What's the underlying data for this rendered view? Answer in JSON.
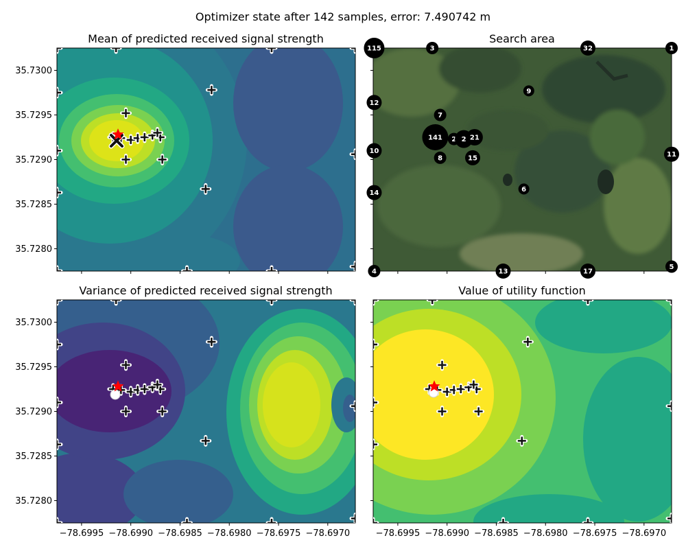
{
  "figure": {
    "suptitle": "Optimizer state after 142 samples, error: 7.490742 m"
  },
  "chart_data": [
    {
      "type": "contour",
      "title": "Mean of predicted received signal strength",
      "colormap": [
        "#440154",
        "#482475",
        "#414487",
        "#355f8d",
        "#2a788e",
        "#21918c",
        "#22a884",
        "#44bf70",
        "#7ad151",
        "#bddf26",
        "#fde725"
      ],
      "xlim": [
        -78.69975,
        -78.69672
      ],
      "ylim": [
        35.72775,
        35.73025
      ],
      "xticks": [
        -78.6995,
        -78.699,
        -78.6985,
        -78.698,
        -78.6975,
        -78.697
      ],
      "xtick_labels": [
        "−78.6995",
        "−78.6990",
        "−78.6985",
        "−78.6980",
        "−78.6975",
        "−78.6970"
      ],
      "yticks": [
        35.728,
        35.7285,
        35.729,
        35.7295,
        35.73
      ],
      "ytick_labels": [
        "35.7280",
        "35.7285",
        "35.7290",
        "35.7295",
        "35.7300"
      ],
      "show_xtick_labels": false,
      "show_ytick_labels": true,
      "estimate_marker": "x",
      "true_location": [
        -78.69913,
        35.72928
      ]
    },
    {
      "type": "map",
      "title": "Search area",
      "xlim": [
        -78.69975,
        -78.69672
      ],
      "ylim": [
        35.72775,
        35.73025
      ],
      "xticks": [
        -78.6995,
        -78.699,
        -78.6985,
        -78.698,
        -78.6975,
        -78.697
      ],
      "yticks": [
        35.728,
        35.7285,
        35.729,
        35.7295,
        35.73
      ],
      "show_xtick_labels": false,
      "show_ytick_labels": false,
      "bubbles": [
        {
          "label": "115",
          "x": -78.69974,
          "y": 35.73025,
          "size": 15
        },
        {
          "label": "3",
          "x": -78.69915,
          "y": 35.73025,
          "size": 9
        },
        {
          "label": "32",
          "x": -78.69757,
          "y": 35.73025,
          "size": 11
        },
        {
          "label": "1",
          "x": -78.69672,
          "y": 35.73025,
          "size": 9
        },
        {
          "label": "9",
          "x": -78.69817,
          "y": 35.72977,
          "size": 8
        },
        {
          "label": "12",
          "x": -78.69974,
          "y": 35.72964,
          "size": 11
        },
        {
          "label": "7",
          "x": -78.69907,
          "y": 35.7295,
          "size": 9
        },
        {
          "label": "141",
          "x": -78.69912,
          "y": 35.72925,
          "size": 19
        },
        {
          "label": "2",
          "x": -78.69893,
          "y": 35.72923,
          "size": 9
        },
        {
          "label": "2",
          "x": -78.69883,
          "y": 35.72923,
          "size": 13
        },
        {
          "label": "21",
          "x": -78.69872,
          "y": 35.72925,
          "size": 12
        },
        {
          "label": "10",
          "x": -78.69974,
          "y": 35.7291,
          "size": 11
        },
        {
          "label": "8",
          "x": -78.69907,
          "y": 35.72902,
          "size": 9
        },
        {
          "label": "15",
          "x": -78.69874,
          "y": 35.72902,
          "size": 11
        },
        {
          "label": "11",
          "x": -78.69672,
          "y": 35.72906,
          "size": 11
        },
        {
          "label": "6",
          "x": -78.69822,
          "y": 35.72867,
          "size": 8
        },
        {
          "label": "14",
          "x": -78.69974,
          "y": 35.72863,
          "size": 11
        },
        {
          "label": "4",
          "x": -78.69974,
          "y": 35.72775,
          "size": 9
        },
        {
          "label": "13",
          "x": -78.69843,
          "y": 35.72775,
          "size": 11
        },
        {
          "label": "17",
          "x": -78.69757,
          "y": 35.72775,
          "size": 11
        },
        {
          "label": "5",
          "x": -78.69672,
          "y": 35.7278,
          "size": 9
        }
      ]
    },
    {
      "type": "contour",
      "title": "Variance of predicted received signal strength",
      "colormap": [
        "#440154",
        "#482475",
        "#414487",
        "#355f8d",
        "#2a788e",
        "#21918c",
        "#22a884",
        "#44bf70",
        "#7ad151",
        "#bddf26",
        "#fde725"
      ],
      "xlim": [
        -78.69975,
        -78.69672
      ],
      "ylim": [
        35.72775,
        35.73025
      ],
      "xticks": [
        -78.6995,
        -78.699,
        -78.6985,
        -78.698,
        -78.6975,
        -78.697
      ],
      "xtick_labels": [
        "−78.6995",
        "−78.6990",
        "−78.6985",
        "−78.6980",
        "−78.6975",
        "−78.6970"
      ],
      "yticks": [
        35.728,
        35.7285,
        35.729,
        35.7295,
        35.73
      ],
      "ytick_labels": [
        "35.7280",
        "35.7285",
        "35.7290",
        "35.7295",
        "35.7300"
      ],
      "show_xtick_labels": true,
      "show_ytick_labels": true,
      "estimate_marker": "circle",
      "true_location": [
        -78.69913,
        35.72928
      ]
    },
    {
      "type": "contour",
      "title": "Value of utility function",
      "colormap": [
        "#440154",
        "#482475",
        "#414487",
        "#355f8d",
        "#2a788e",
        "#21918c",
        "#22a884",
        "#44bf70",
        "#7ad151",
        "#bddf26",
        "#fde725"
      ],
      "xlim": [
        -78.69975,
        -78.69672
      ],
      "ylim": [
        35.72775,
        35.73025
      ],
      "xticks": [
        -78.6995,
        -78.699,
        -78.6985,
        -78.698,
        -78.6975,
        -78.697
      ],
      "xtick_labels": [
        "−78.6995",
        "−78.6990",
        "−78.6985",
        "−78.6980",
        "−78.6975",
        "−78.6970"
      ],
      "yticks": [
        35.728,
        35.7285,
        35.729,
        35.7295,
        35.73
      ],
      "show_xtick_labels": true,
      "show_ytick_labels": false,
      "estimate_marker": "circle",
      "true_location": [
        -78.69913,
        35.72928
      ]
    }
  ],
  "samples": [
    [
      -78.69975,
      35.73025
    ],
    [
      -78.69915,
      35.73025
    ],
    [
      -78.69757,
      35.73025
    ],
    [
      -78.69672,
      35.73025
    ],
    [
      -78.69975,
      35.72975
    ],
    [
      -78.69905,
      35.72952
    ],
    [
      -78.69818,
      35.72978
    ],
    [
      -78.69975,
      35.7291
    ],
    [
      -78.69905,
      35.729
    ],
    [
      -78.69868,
      35.729
    ],
    [
      -78.69672,
      35.72906
    ],
    [
      -78.69824,
      35.72867
    ],
    [
      -78.69975,
      35.72863
    ],
    [
      -78.69975,
      35.72775
    ],
    [
      -78.69843,
      35.72775
    ],
    [
      -78.69757,
      35.72775
    ],
    [
      -78.69672,
      35.7278
    ],
    [
      -78.69918,
      35.72925
    ],
    [
      -78.6991,
      35.72924
    ],
    [
      -78.699,
      35.72922
    ],
    [
      -78.69893,
      35.72924
    ],
    [
      -78.69886,
      35.72925
    ],
    [
      -78.69878,
      35.72927
    ],
    [
      -78.6987,
      35.72925
    ],
    [
      -78.69873,
      35.7293
    ]
  ]
}
